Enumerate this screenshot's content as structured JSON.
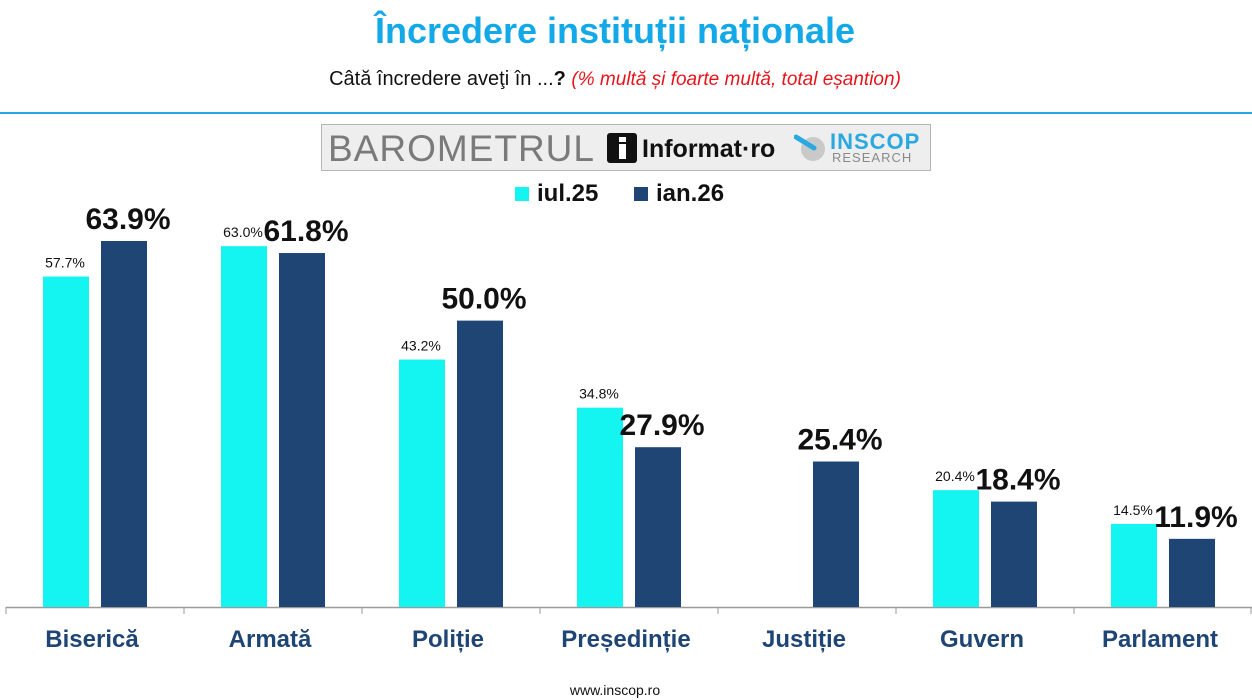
{
  "header": {
    "title": "Încredere instituții naționale",
    "subtitle_question": "Câtă încredere aveţi în ...",
    "subtitle_mark": "?",
    "subtitle_note": "(% multă și foarte multă, total eșantion)"
  },
  "logos": {
    "barometrul": "BAROMETRUL",
    "informat": "Informat·ro",
    "inscop": "INSCOP",
    "research": "RESEARCH"
  },
  "footer": {
    "url": "www.inscop.ro"
  },
  "colors": {
    "series1": "#14f5f2",
    "series2": "#1f4574",
    "axis": "#9a9a9a",
    "category_text": "#1f4574"
  },
  "chart_data": {
    "type": "bar",
    "title": "Încredere instituții naționale",
    "categories": [
      "Biserică",
      "Armată",
      "Poliție",
      "Președinție",
      "Justiție",
      "Guvern",
      "Parlament"
    ],
    "series": [
      {
        "name": "iul.25",
        "values": [
          57.7,
          63.0,
          43.2,
          34.8,
          null,
          20.4,
          14.5
        ],
        "labels": [
          "57.7%",
          "63.0%",
          "43.2%",
          "34.8%",
          "",
          "20.4%",
          "14.5%"
        ]
      },
      {
        "name": "ian.26",
        "values": [
          63.9,
          61.8,
          50.0,
          27.9,
          25.4,
          18.4,
          11.9
        ],
        "labels": [
          "63.9%",
          "61.8%",
          "50.0%",
          "27.9%",
          "25.4%",
          "18.4%",
          "11.9%"
        ]
      }
    ],
    "ylim": [
      0,
      63.9
    ],
    "grid": false,
    "legend": "top-center"
  }
}
